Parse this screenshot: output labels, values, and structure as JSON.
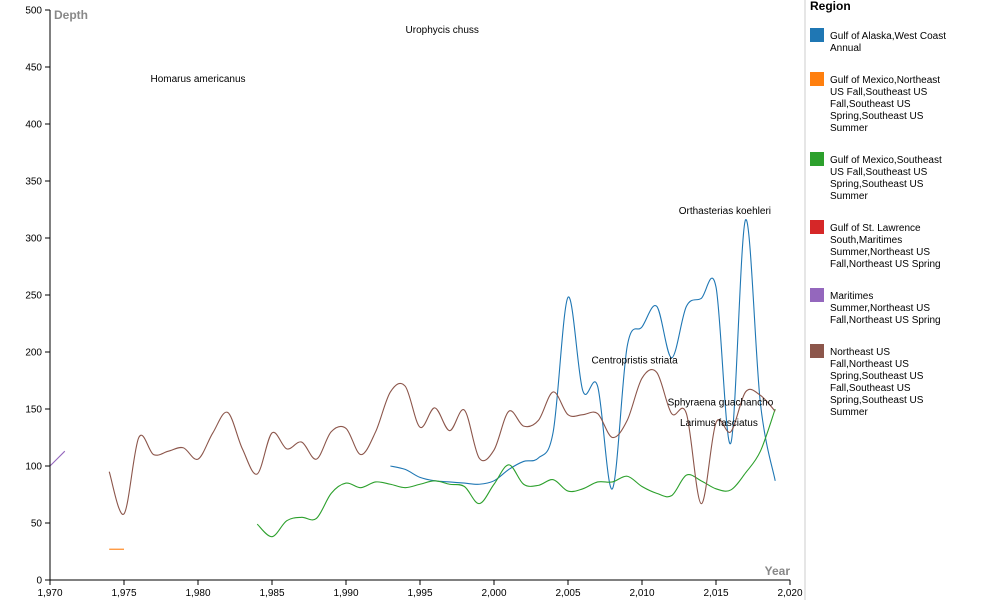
{
  "chart_data": {
    "type": "line",
    "xlabel": "Year",
    "ylabel": "Depth",
    "xlim": [
      1970,
      2020
    ],
    "ylim": [
      0,
      500
    ],
    "x_ticks": [
      1970,
      1975,
      1980,
      1985,
      1990,
      1995,
      2000,
      2005,
      2010,
      2015,
      2020
    ],
    "x_tick_labels": [
      "1,970",
      "1,975",
      "1,980",
      "1,985",
      "1,990",
      "1,995",
      "2,000",
      "2,005",
      "2,010",
      "2,015",
      "2,020"
    ],
    "y_ticks": [
      0,
      50,
      100,
      150,
      200,
      250,
      300,
      350,
      400,
      450,
      500
    ],
    "y_tick_labels": [
      "0",
      "50",
      "100",
      "150",
      "200",
      "250",
      "300",
      "350",
      "400",
      "450",
      "500"
    ],
    "legend_title": "Region",
    "legend_placement": "right",
    "series": [
      {
        "name": "Gulf of Alaska,West Coast Annual",
        "color": "#1f77b4",
        "points": [
          [
            1993,
            100
          ],
          [
            1994,
            97
          ],
          [
            1995,
            90
          ],
          [
            1996,
            87
          ],
          [
            1997,
            86
          ],
          [
            1998,
            85
          ],
          [
            1999,
            84
          ],
          [
            2000,
            87
          ],
          [
            2001,
            97
          ],
          [
            2002,
            104
          ],
          [
            2003,
            107
          ],
          [
            2004,
            130
          ],
          [
            2005,
            248
          ],
          [
            2006,
            166
          ],
          [
            2007,
            170
          ],
          [
            2008,
            80
          ],
          [
            2009,
            205
          ],
          [
            2010,
            222
          ],
          [
            2011,
            240
          ],
          [
            2012,
            195
          ],
          [
            2013,
            240
          ],
          [
            2014,
            247
          ],
          [
            2015,
            257
          ],
          [
            2016,
            120
          ],
          [
            2017,
            316
          ],
          [
            2018,
            155
          ],
          [
            2019,
            87
          ]
        ]
      },
      {
        "name": "Gulf of Mexico,Northeast US Fall,Southeast US Fall,Southeast US Spring,Southeast US Summer",
        "color": "#ff7f0e",
        "points": [
          [
            1974,
            27
          ],
          [
            1975,
            27
          ]
        ]
      },
      {
        "name": "Gulf of Mexico,Southeast US Fall,Southeast US Spring,Southeast US Summer",
        "color": "#2ca02c",
        "points": [
          [
            1984,
            49
          ],
          [
            1985,
            38
          ],
          [
            1986,
            52
          ],
          [
            1987,
            55
          ],
          [
            1988,
            54
          ],
          [
            1989,
            76
          ],
          [
            1990,
            85
          ],
          [
            1991,
            81
          ],
          [
            1992,
            86
          ],
          [
            1993,
            84
          ],
          [
            1994,
            81
          ],
          [
            1995,
            84
          ],
          [
            1996,
            87
          ],
          [
            1997,
            84
          ],
          [
            1998,
            82
          ],
          [
            1999,
            67
          ],
          [
            2000,
            84
          ],
          [
            2001,
            101
          ],
          [
            2002,
            84
          ],
          [
            2003,
            83
          ],
          [
            2004,
            88
          ],
          [
            2005,
            78
          ],
          [
            2006,
            80
          ],
          [
            2007,
            86
          ],
          [
            2008,
            86
          ],
          [
            2009,
            91
          ],
          [
            2010,
            82
          ],
          [
            2011,
            76
          ],
          [
            2012,
            74
          ],
          [
            2013,
            92
          ],
          [
            2014,
            87
          ],
          [
            2015,
            80
          ],
          [
            2016,
            79
          ],
          [
            2017,
            94
          ],
          [
            2018,
            113
          ],
          [
            2019,
            150
          ]
        ]
      },
      {
        "name": "Gulf of St. Lawrence South,Maritimes Summer,Northeast US Fall,Northeast US Spring",
        "color": "#d62728",
        "points": []
      },
      {
        "name": "Maritimes Summer,Northeast US Fall,Northeast US Spring",
        "color": "#9467bd",
        "points": [
          [
            1970,
            100
          ],
          [
            1971,
            113
          ]
        ]
      },
      {
        "name": "Northeast US Fall,Northeast US Spring,Southeast US Fall,Southeast US Spring,Southeast US Summer",
        "color": "#8c564b",
        "points": [
          [
            1974,
            95
          ],
          [
            1975,
            58
          ],
          [
            1976,
            125
          ],
          [
            1977,
            110
          ],
          [
            1978,
            113
          ],
          [
            1979,
            116
          ],
          [
            1980,
            106
          ],
          [
            1981,
            129
          ],
          [
            1982,
            147
          ],
          [
            1983,
            115
          ],
          [
            1984,
            93
          ],
          [
            1985,
            129
          ],
          [
            1986,
            115
          ],
          [
            1987,
            121
          ],
          [
            1988,
            106
          ],
          [
            1989,
            130
          ],
          [
            1990,
            133
          ],
          [
            1991,
            110
          ],
          [
            1992,
            130
          ],
          [
            1993,
            165
          ],
          [
            1994,
            170
          ],
          [
            1995,
            134
          ],
          [
            1996,
            151
          ],
          [
            1997,
            131
          ],
          [
            1998,
            149
          ],
          [
            1999,
            107
          ],
          [
            2000,
            114
          ],
          [
            2001,
            148
          ],
          [
            2002,
            135
          ],
          [
            2003,
            140
          ],
          [
            2004,
            165
          ],
          [
            2005,
            145
          ],
          [
            2006,
            145
          ],
          [
            2007,
            146
          ],
          [
            2008,
            125
          ],
          [
            2009,
            140
          ],
          [
            2010,
            177
          ],
          [
            2011,
            182
          ],
          [
            2012,
            146
          ],
          [
            2013,
            146
          ],
          [
            2014,
            67
          ],
          [
            2015,
            138
          ],
          [
            2016,
            130
          ],
          [
            2017,
            165
          ],
          [
            2018,
            162
          ],
          [
            2019,
            148
          ]
        ]
      }
    ],
    "annotations": [
      {
        "text": "Urophycis chuss",
        "x": 1996.5,
        "y": 480
      },
      {
        "text": "Homarus americanus",
        "x": 1980,
        "y": 437
      },
      {
        "text": "Orthasterias koehleri",
        "x": 2015.6,
        "y": 321
      },
      {
        "text": "Centropristis striata",
        "x": 2009.5,
        "y": 190
      },
      {
        "text": "Sphyraena guachancho",
        "x": 2015.3,
        "y": 153
      },
      {
        "text": "Larimus fasciatus",
        "x": 2015.2,
        "y": 135
      }
    ]
  }
}
